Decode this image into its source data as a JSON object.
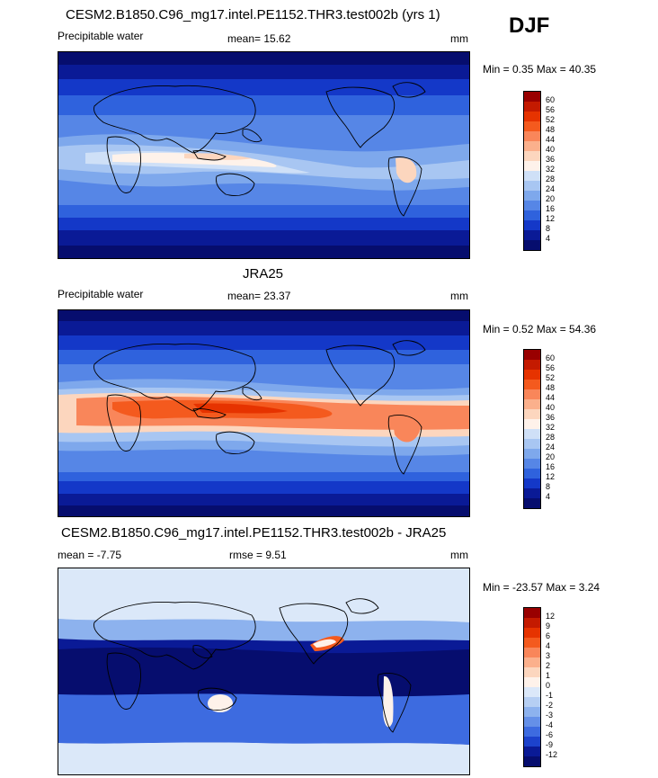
{
  "season": "DJF",
  "panels": [
    {
      "title": "CESM2.B1850.C96_mg17.intel.PE1152.THR3.test002b (yrs 1)",
      "left_label": "Precipitable water",
      "center_label": "mean=  15.62",
      "units": "mm",
      "minmax": "Min =   0.35 Max =  40.35",
      "colorbar": {
        "labels": [
          "60",
          "56",
          "52",
          "48",
          "44",
          "40",
          "36",
          "32",
          "28",
          "24",
          "20",
          "16",
          "12",
          "8",
          "4"
        ],
        "colors": [
          "#990000",
          "#c41a00",
          "#e63300",
          "#f45a1e",
          "#f9865a",
          "#fbb08c",
          "#fcd6be",
          "#fef2ea",
          "#cfe0f7",
          "#a8c6f2",
          "#7ea8ec",
          "#5686e6",
          "#2f62dd",
          "#1438c8",
          "#0a1a96",
          "#060d6e"
        ]
      }
    },
    {
      "title": "JRA25",
      "left_label": "Precipitable water",
      "center_label": "mean=  23.37",
      "units": "mm",
      "minmax": "Min =   0.52 Max =  54.36",
      "colorbar": {
        "labels": [
          "60",
          "56",
          "52",
          "48",
          "44",
          "40",
          "36",
          "32",
          "28",
          "24",
          "20",
          "16",
          "12",
          "8",
          "4"
        ],
        "colors": [
          "#990000",
          "#c41a00",
          "#e63300",
          "#f45a1e",
          "#f9865a",
          "#fbb08c",
          "#fcd6be",
          "#fef2ea",
          "#cfe0f7",
          "#a8c6f2",
          "#7ea8ec",
          "#5686e6",
          "#2f62dd",
          "#1438c8",
          "#0a1a96",
          "#060d6e"
        ]
      }
    },
    {
      "title": "CESM2.B1850.C96_mg17.intel.PE1152.THR3.test002b - JRA25",
      "left_label": "mean =  -7.75",
      "center_label": "rmse =   9.51",
      "units": "mm",
      "minmax": "Min = -23.57 Max =   3.24",
      "colorbar": {
        "labels": [
          "12",
          "9",
          "6",
          "4",
          "3",
          "2",
          "1",
          "0",
          "-1",
          "-2",
          "-3",
          "-4",
          "-6",
          "-9",
          "-12"
        ],
        "colors": [
          "#990000",
          "#c41a00",
          "#e63300",
          "#f45a1e",
          "#f9865a",
          "#fbb08c",
          "#fcd6be",
          "#fef2ea",
          "#dbe8f9",
          "#b6cff3",
          "#8db2ee",
          "#6590e8",
          "#3d6be0",
          "#1c42cc",
          "#0a1a96",
          "#060d6e"
        ]
      }
    }
  ]
}
